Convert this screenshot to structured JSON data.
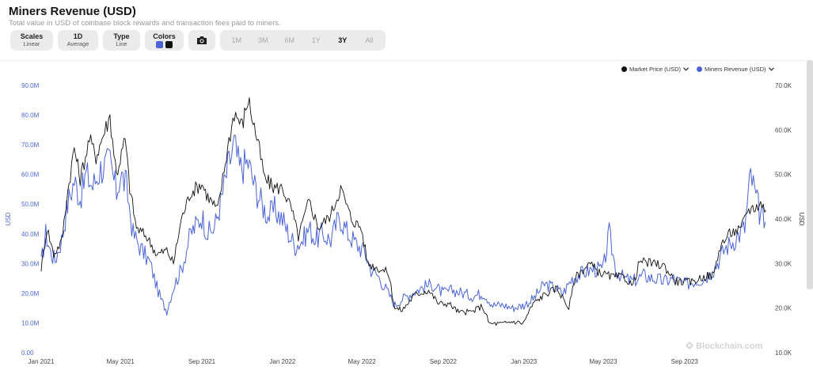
{
  "header": {
    "title": "Miners Revenue (USD)",
    "subtitle": "Total value in USD of coinbase block rewards and transaction fees paid to miners."
  },
  "controls": {
    "scales": {
      "label": "Scales",
      "value": "Linear"
    },
    "resolution": {
      "label": "1D",
      "value": "Average"
    },
    "type": {
      "label": "Type",
      "value": "Line"
    },
    "colors": {
      "label": "Colors",
      "swatches": [
        "#4a64d8",
        "#111111"
      ]
    },
    "camera_icon": "camera-icon",
    "ranges": [
      "1M",
      "3M",
      "6M",
      "1Y",
      "3Y",
      "All"
    ],
    "active_range": "3Y"
  },
  "watermark": "Blockchain.com",
  "chart_data": {
    "type": "line",
    "title": "Miners Revenue (USD)",
    "legend": [
      {
        "name": "Market Price (USD)",
        "color": "#111111",
        "dropdown": "chevron-down-icon"
      },
      {
        "name": "Miners Revenue (USD)",
        "color": "#4a64d8",
        "dropdown": "chevron-down-icon"
      }
    ],
    "legend_position": "top-right",
    "x_ticks": [
      "Jan 2021",
      "May 2021",
      "Sep 2021",
      "Jan 2022",
      "May 2022",
      "Sep 2022",
      "Jan 2023",
      "May 2023",
      "Sep 2023"
    ],
    "y_left": {
      "label": "USD",
      "ticks": [
        "0.00",
        "10.0M",
        "20.0M",
        "30.0M",
        "40.0M",
        "50.0M",
        "60.0M",
        "70.0M",
        "80.0M",
        "90.0M"
      ],
      "range": [
        0,
        90000000
      ],
      "color": "#4a64d8"
    },
    "y_right": {
      "label": "USD",
      "ticks": [
        "10.0K",
        "20.0K",
        "30.0K",
        "40.0K",
        "50.0K",
        "60.0K",
        "70.0K"
      ],
      "range": [
        10000,
        70000
      ]
    },
    "x_range": [
      "2021-01-01",
      "2024-01-05"
    ],
    "series": [
      {
        "name": "Miners Revenue (USD)",
        "axis": "left",
        "color": "#4a64d8",
        "points": [
          [
            "2021-01-01",
            30000000
          ],
          [
            "2021-01-08",
            40000000
          ],
          [
            "2021-01-15",
            34000000
          ],
          [
            "2021-01-22",
            31000000
          ],
          [
            "2021-02-01",
            38000000
          ],
          [
            "2021-02-10",
            50000000
          ],
          [
            "2021-02-20",
            58000000
          ],
          [
            "2021-03-01",
            52000000
          ],
          [
            "2021-03-10",
            60000000
          ],
          [
            "2021-03-20",
            56000000
          ],
          [
            "2021-04-01",
            62000000
          ],
          [
            "2021-04-15",
            64000000
          ],
          [
            "2021-04-25",
            54000000
          ],
          [
            "2021-05-01",
            60000000
          ],
          [
            "2021-05-10",
            56000000
          ],
          [
            "2021-05-20",
            40000000
          ],
          [
            "2021-06-01",
            35000000
          ],
          [
            "2021-06-15",
            30000000
          ],
          [
            "2021-06-25",
            22000000
          ],
          [
            "2021-07-01",
            18000000
          ],
          [
            "2021-07-10",
            14000000
          ],
          [
            "2021-07-20",
            22000000
          ],
          [
            "2021-08-01",
            28000000
          ],
          [
            "2021-08-15",
            40000000
          ],
          [
            "2021-09-01",
            46000000
          ],
          [
            "2021-09-10",
            40000000
          ],
          [
            "2021-09-20",
            42000000
          ],
          [
            "2021-10-01",
            52000000
          ],
          [
            "2021-10-10",
            62000000
          ],
          [
            "2021-10-20",
            70000000
          ],
          [
            "2021-10-28",
            62000000
          ],
          [
            "2021-11-10",
            64000000
          ],
          [
            "2021-11-20",
            56000000
          ],
          [
            "2021-12-01",
            50000000
          ],
          [
            "2021-12-10",
            46000000
          ],
          [
            "2021-12-20",
            48000000
          ],
          [
            "2022-01-01",
            45000000
          ],
          [
            "2022-01-10",
            40000000
          ],
          [
            "2022-01-20",
            36000000
          ],
          [
            "2022-02-01",
            38000000
          ],
          [
            "2022-02-10",
            42000000
          ],
          [
            "2022-02-20",
            38000000
          ],
          [
            "2022-03-01",
            40000000
          ],
          [
            "2022-03-15",
            38000000
          ],
          [
            "2022-03-28",
            46000000
          ],
          [
            "2022-04-10",
            40000000
          ],
          [
            "2022-04-25",
            36000000
          ],
          [
            "2022-05-05",
            34000000
          ],
          [
            "2022-05-15",
            28000000
          ],
          [
            "2022-05-25",
            26000000
          ],
          [
            "2022-06-10",
            20000000
          ],
          [
            "2022-06-20",
            16000000
          ],
          [
            "2022-07-01",
            18000000
          ],
          [
            "2022-07-15",
            20000000
          ],
          [
            "2022-08-01",
            22000000
          ],
          [
            "2022-08-15",
            23000000
          ],
          [
            "2022-09-01",
            20000000
          ],
          [
            "2022-09-15",
            21000000
          ],
          [
            "2022-10-01",
            20000000
          ],
          [
            "2022-10-15",
            19000000
          ],
          [
            "2022-11-01",
            20000000
          ],
          [
            "2022-11-15",
            16000000
          ],
          [
            "2022-12-01",
            16000000
          ],
          [
            "2022-12-15",
            15000000
          ],
          [
            "2023-01-01",
            16000000
          ],
          [
            "2023-01-15",
            18000000
          ],
          [
            "2023-02-01",
            23000000
          ],
          [
            "2023-02-15",
            22000000
          ],
          [
            "2023-03-01",
            20000000
          ],
          [
            "2023-03-15",
            25000000
          ],
          [
            "2023-04-01",
            27000000
          ],
          [
            "2023-04-15",
            28000000
          ],
          [
            "2023-05-01",
            28000000
          ],
          [
            "2023-05-10",
            40000000
          ],
          [
            "2023-05-20",
            28000000
          ],
          [
            "2023-06-01",
            25000000
          ],
          [
            "2023-06-15",
            24000000
          ],
          [
            "2023-07-01",
            26000000
          ],
          [
            "2023-07-15",
            25000000
          ],
          [
            "2023-08-01",
            24000000
          ],
          [
            "2023-08-15",
            25000000
          ],
          [
            "2023-09-01",
            23000000
          ],
          [
            "2023-09-15",
            24000000
          ],
          [
            "2023-10-01",
            25000000
          ],
          [
            "2023-10-15",
            28000000
          ],
          [
            "2023-11-01",
            35000000
          ],
          [
            "2023-11-15",
            38000000
          ],
          [
            "2023-12-01",
            42000000
          ],
          [
            "2023-12-10",
            60000000
          ],
          [
            "2023-12-18",
            52000000
          ],
          [
            "2023-12-25",
            46000000
          ],
          [
            "2024-01-01",
            44000000
          ]
        ]
      },
      {
        "name": "Market Price (USD)",
        "axis": "right",
        "color": "#111111",
        "points": [
          [
            "2021-01-01",
            29000
          ],
          [
            "2021-01-10",
            38000
          ],
          [
            "2021-01-20",
            32000
          ],
          [
            "2021-02-01",
            35000
          ],
          [
            "2021-02-10",
            46000
          ],
          [
            "2021-02-20",
            56000
          ],
          [
            "2021-03-01",
            49000
          ],
          [
            "2021-03-15",
            58000
          ],
          [
            "2021-03-25",
            54000
          ],
          [
            "2021-04-05",
            59000
          ],
          [
            "2021-04-15",
            63000
          ],
          [
            "2021-04-25",
            50000
          ],
          [
            "2021-05-08",
            58000
          ],
          [
            "2021-05-15",
            47000
          ],
          [
            "2021-05-25",
            38000
          ],
          [
            "2021-06-10",
            36000
          ],
          [
            "2021-06-25",
            32000
          ],
          [
            "2021-07-10",
            33000
          ],
          [
            "2021-07-20",
            30000
          ],
          [
            "2021-08-01",
            40000
          ],
          [
            "2021-08-15",
            46000
          ],
          [
            "2021-09-01",
            48000
          ],
          [
            "2021-09-10",
            45000
          ],
          [
            "2021-09-25",
            42000
          ],
          [
            "2021-10-10",
            56000
          ],
          [
            "2021-10-20",
            64000
          ],
          [
            "2021-11-01",
            61000
          ],
          [
            "2021-11-10",
            67000
          ],
          [
            "2021-11-25",
            57000
          ],
          [
            "2021-12-05",
            49000
          ],
          [
            "2021-12-20",
            47000
          ],
          [
            "2022-01-01",
            47000
          ],
          [
            "2022-01-15",
            42000
          ],
          [
            "2022-01-25",
            36000
          ],
          [
            "2022-02-10",
            44000
          ],
          [
            "2022-02-25",
            38000
          ],
          [
            "2022-03-15",
            41000
          ],
          [
            "2022-03-30",
            47000
          ],
          [
            "2022-04-15",
            40000
          ],
          [
            "2022-04-30",
            38000
          ],
          [
            "2022-05-10",
            30000
          ],
          [
            "2022-05-25",
            29000
          ],
          [
            "2022-06-10",
            28000
          ],
          [
            "2022-06-20",
            20000
          ],
          [
            "2022-07-01",
            19500
          ],
          [
            "2022-07-20",
            23000
          ],
          [
            "2022-08-10",
            24000
          ],
          [
            "2022-08-25",
            21000
          ],
          [
            "2022-09-10",
            21000
          ],
          [
            "2022-09-25",
            19000
          ],
          [
            "2022-10-15",
            19200
          ],
          [
            "2022-10-30",
            20500
          ],
          [
            "2022-11-10",
            16500
          ],
          [
            "2022-11-30",
            16500
          ],
          [
            "2022-12-15",
            17000
          ],
          [
            "2022-12-31",
            16600
          ],
          [
            "2023-01-15",
            21000
          ],
          [
            "2023-02-01",
            23000
          ],
          [
            "2023-02-20",
            24500
          ],
          [
            "2023-03-10",
            20000
          ],
          [
            "2023-03-20",
            27000
          ],
          [
            "2023-04-10",
            30000
          ],
          [
            "2023-04-25",
            28000
          ],
          [
            "2023-05-15",
            27000
          ],
          [
            "2023-06-01",
            27000
          ],
          [
            "2023-06-15",
            25000
          ],
          [
            "2023-06-25",
            30500
          ],
          [
            "2023-07-15",
            30000
          ],
          [
            "2023-08-01",
            29500
          ],
          [
            "2023-08-18",
            26000
          ],
          [
            "2023-09-10",
            25800
          ],
          [
            "2023-09-30",
            27000
          ],
          [
            "2023-10-15",
            27500
          ],
          [
            "2023-10-25",
            34000
          ],
          [
            "2023-11-10",
            37000
          ],
          [
            "2023-11-25",
            37500
          ],
          [
            "2023-12-05",
            42000
          ],
          [
            "2023-12-15",
            42500
          ],
          [
            "2023-12-25",
            43500
          ],
          [
            "2024-01-02",
            42000
          ]
        ]
      }
    ]
  }
}
